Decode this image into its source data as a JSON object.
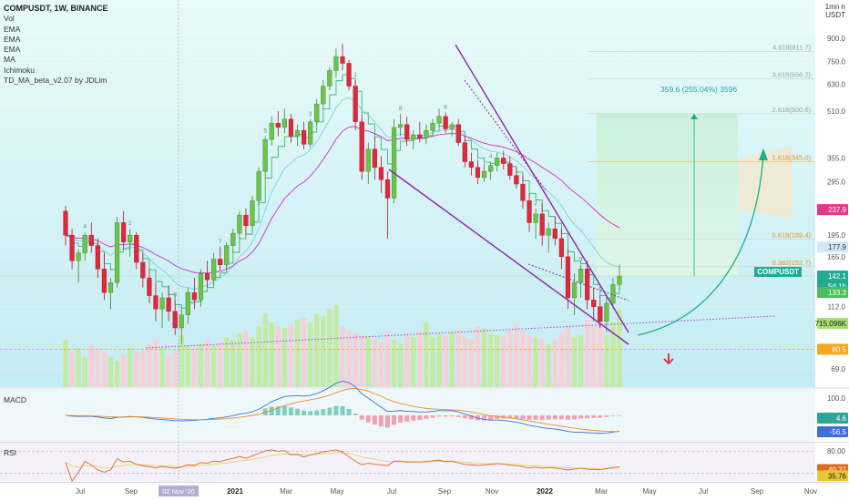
{
  "header": {
    "title": "COMPUSDT, 1W, BINANCE",
    "indicators": [
      "Vol",
      "EMA",
      "EMA",
      "EMA",
      "MA",
      "Ichimoku",
      "TD_MA_beta_v2.07 by JDLim"
    ],
    "currency_unit": "USDT",
    "unit_top": "1mn n"
  },
  "panes": {
    "macd_label": "MACD",
    "rsi_label": "RSI"
  },
  "price_axis": {
    "ticks": [
      "900.0",
      "750.0",
      "630.0",
      "510.0",
      "355.0",
      "295.0",
      "195.0",
      "165.0",
      "112.0",
      "69.0"
    ],
    "tags": {
      "ma_red": "237.9",
      "ema_blue": "177.9",
      "symbol": "COMPUSDT",
      "last": "142.1",
      "countdown": "5d 1h",
      "ema_green": "133.3",
      "volume": "715.096K",
      "support": "80.5"
    }
  },
  "macd_axis": {
    "ticks": [
      "100.0"
    ],
    "tags": [
      "4.6",
      "-56.5"
    ]
  },
  "rsi_axis": {
    "ticks": [
      "80.00"
    ],
    "tags": [
      "40.27",
      "35.76"
    ]
  },
  "time_axis": {
    "labels": [
      "Jul",
      "Sep",
      "2021",
      "Mar",
      "May",
      "Jul",
      "Sep",
      "Nov",
      "2022",
      "Mar",
      "May",
      "Jul",
      "Sep",
      "Nov"
    ],
    "crosshair_label": "02 Nov '20"
  },
  "fib_levels": [
    {
      "label": "4.618(811.7)",
      "value": 811.7
    },
    {
      "label": "3.618(656.2)",
      "value": 656.2
    },
    {
      "label": "2.618(500.6)",
      "value": 500.6
    },
    {
      "label": "1.618(345.0)",
      "value": 345.0
    },
    {
      "label": "0.618(189.4)",
      "value": 189.4
    },
    {
      "label": "0.382(152.7)",
      "value": 152.7
    }
  ],
  "projection": {
    "label": "359.6 (255.04%) 3596",
    "from": 142.1,
    "to": 500.6
  },
  "td_labels": [
    "1",
    "2",
    "3",
    "4",
    "5",
    "6",
    "7",
    "8",
    "9",
    "13"
  ],
  "chart_data": {
    "type": "candlestick",
    "title": "COMPUSDT, 1W, BINANCE",
    "last_price": 142.1,
    "support_level": 80.5,
    "volume_last": "715.096K",
    "candles": [
      {
        "o": 235,
        "h": 245,
        "l": 180,
        "c": 195
      },
      {
        "o": 195,
        "h": 205,
        "l": 150,
        "c": 160
      },
      {
        "o": 160,
        "h": 175,
        "l": 135,
        "c": 170
      },
      {
        "o": 170,
        "h": 200,
        "l": 160,
        "c": 195
      },
      {
        "o": 195,
        "h": 215,
        "l": 170,
        "c": 180
      },
      {
        "o": 180,
        "h": 190,
        "l": 140,
        "c": 150
      },
      {
        "o": 150,
        "h": 170,
        "l": 118,
        "c": 125
      },
      {
        "o": 125,
        "h": 140,
        "l": 110,
        "c": 135
      },
      {
        "o": 135,
        "h": 225,
        "l": 130,
        "c": 215
      },
      {
        "o": 215,
        "h": 235,
        "l": 175,
        "c": 185
      },
      {
        "o": 185,
        "h": 205,
        "l": 165,
        "c": 195
      },
      {
        "o": 195,
        "h": 200,
        "l": 150,
        "c": 158
      },
      {
        "o": 158,
        "h": 170,
        "l": 130,
        "c": 140
      },
      {
        "o": 140,
        "h": 150,
        "l": 115,
        "c": 122
      },
      {
        "o": 122,
        "h": 135,
        "l": 100,
        "c": 110
      },
      {
        "o": 110,
        "h": 125,
        "l": 95,
        "c": 120
      },
      {
        "o": 120,
        "h": 132,
        "l": 100,
        "c": 108
      },
      {
        "o": 108,
        "h": 118,
        "l": 90,
        "c": 95
      },
      {
        "o": 95,
        "h": 112,
        "l": 84,
        "c": 105
      },
      {
        "o": 105,
        "h": 130,
        "l": 98,
        "c": 125
      },
      {
        "o": 125,
        "h": 140,
        "l": 110,
        "c": 118
      },
      {
        "o": 118,
        "h": 150,
        "l": 112,
        "c": 145
      },
      {
        "o": 145,
        "h": 160,
        "l": 130,
        "c": 138
      },
      {
        "o": 138,
        "h": 170,
        "l": 132,
        "c": 162
      },
      {
        "o": 162,
        "h": 178,
        "l": 148,
        "c": 155
      },
      {
        "o": 155,
        "h": 185,
        "l": 150,
        "c": 180
      },
      {
        "o": 180,
        "h": 205,
        "l": 170,
        "c": 198
      },
      {
        "o": 198,
        "h": 235,
        "l": 190,
        "c": 228
      },
      {
        "o": 228,
        "h": 240,
        "l": 195,
        "c": 210
      },
      {
        "o": 210,
        "h": 265,
        "l": 205,
        "c": 255
      },
      {
        "o": 255,
        "h": 330,
        "l": 245,
        "c": 320
      },
      {
        "o": 320,
        "h": 420,
        "l": 305,
        "c": 410
      },
      {
        "o": 410,
        "h": 490,
        "l": 390,
        "c": 465
      },
      {
        "o": 465,
        "h": 510,
        "l": 420,
        "c": 450
      },
      {
        "o": 450,
        "h": 520,
        "l": 430,
        "c": 480
      },
      {
        "o": 480,
        "h": 500,
        "l": 400,
        "c": 420
      },
      {
        "o": 420,
        "h": 460,
        "l": 390,
        "c": 440
      },
      {
        "o": 440,
        "h": 470,
        "l": 380,
        "c": 395
      },
      {
        "o": 395,
        "h": 480,
        "l": 385,
        "c": 470
      },
      {
        "o": 470,
        "h": 560,
        "l": 455,
        "c": 540
      },
      {
        "o": 540,
        "h": 650,
        "l": 520,
        "c": 620
      },
      {
        "o": 620,
        "h": 720,
        "l": 600,
        "c": 700
      },
      {
        "o": 700,
        "h": 830,
        "l": 660,
        "c": 780
      },
      {
        "o": 780,
        "h": 860,
        "l": 700,
        "c": 740
      },
      {
        "o": 740,
        "h": 760,
        "l": 600,
        "c": 620
      },
      {
        "o": 620,
        "h": 650,
        "l": 440,
        "c": 470
      },
      {
        "o": 470,
        "h": 500,
        "l": 300,
        "c": 320
      },
      {
        "o": 320,
        "h": 400,
        "l": 290,
        "c": 380
      },
      {
        "o": 380,
        "h": 420,
        "l": 300,
        "c": 330
      },
      {
        "o": 330,
        "h": 360,
        "l": 270,
        "c": 300
      },
      {
        "o": 300,
        "h": 320,
        "l": 190,
        "c": 260
      },
      {
        "o": 260,
        "h": 480,
        "l": 250,
        "c": 450
      },
      {
        "o": 450,
        "h": 500,
        "l": 420,
        "c": 460
      },
      {
        "o": 460,
        "h": 490,
        "l": 390,
        "c": 410
      },
      {
        "o": 410,
        "h": 440,
        "l": 380,
        "c": 425
      },
      {
        "o": 425,
        "h": 470,
        "l": 400,
        "c": 415
      },
      {
        "o": 415,
        "h": 460,
        "l": 395,
        "c": 440
      },
      {
        "o": 440,
        "h": 480,
        "l": 420,
        "c": 465
      },
      {
        "o": 465,
        "h": 520,
        "l": 450,
        "c": 490
      },
      {
        "o": 490,
        "h": 505,
        "l": 430,
        "c": 445
      },
      {
        "o": 445,
        "h": 470,
        "l": 420,
        "c": 460
      },
      {
        "o": 460,
        "h": 480,
        "l": 390,
        "c": 400
      },
      {
        "o": 400,
        "h": 420,
        "l": 330,
        "c": 345
      },
      {
        "o": 345,
        "h": 370,
        "l": 310,
        "c": 330
      },
      {
        "o": 330,
        "h": 350,
        "l": 290,
        "c": 305
      },
      {
        "o": 305,
        "h": 340,
        "l": 295,
        "c": 320
      },
      {
        "o": 320,
        "h": 345,
        "l": 300,
        "c": 335
      },
      {
        "o": 335,
        "h": 370,
        "l": 320,
        "c": 355
      },
      {
        "o": 355,
        "h": 375,
        "l": 325,
        "c": 340
      },
      {
        "o": 340,
        "h": 360,
        "l": 300,
        "c": 310
      },
      {
        "o": 310,
        "h": 330,
        "l": 280,
        "c": 290
      },
      {
        "o": 290,
        "h": 310,
        "l": 240,
        "c": 255
      },
      {
        "o": 255,
        "h": 270,
        "l": 200,
        "c": 215
      },
      {
        "o": 215,
        "h": 240,
        "l": 190,
        "c": 230
      },
      {
        "o": 230,
        "h": 250,
        "l": 180,
        "c": 195
      },
      {
        "o": 195,
        "h": 215,
        "l": 170,
        "c": 205
      },
      {
        "o": 205,
        "h": 225,
        "l": 180,
        "c": 190
      },
      {
        "o": 190,
        "h": 205,
        "l": 150,
        "c": 165
      },
      {
        "o": 165,
        "h": 175,
        "l": 110,
        "c": 120
      },
      {
        "o": 120,
        "h": 145,
        "l": 105,
        "c": 135
      },
      {
        "o": 135,
        "h": 155,
        "l": 120,
        "c": 150
      },
      {
        "o": 150,
        "h": 160,
        "l": 110,
        "c": 118
      },
      {
        "o": 118,
        "h": 130,
        "l": 100,
        "c": 112
      },
      {
        "o": 112,
        "h": 122,
        "l": 95,
        "c": 100
      },
      {
        "o": 100,
        "h": 120,
        "l": 92,
        "c": 115
      },
      {
        "o": 115,
        "h": 140,
        "l": 110,
        "c": 133
      },
      {
        "o": 133,
        "h": 155,
        "l": 128,
        "c": 142
      }
    ],
    "volume": [
      55,
      40,
      45,
      35,
      50,
      45,
      40,
      35,
      30,
      38,
      45,
      40,
      42,
      50,
      55,
      45,
      38,
      42,
      60,
      48,
      45,
      50,
      55,
      48,
      52,
      58,
      55,
      62,
      65,
      58,
      70,
      85,
      75,
      70,
      68,
      72,
      78,
      80,
      75,
      85,
      82,
      90,
      95,
      70,
      65,
      62,
      60,
      58,
      55,
      52,
      65,
      55,
      50,
      62,
      58,
      65,
      75,
      58,
      62,
      60,
      64,
      66,
      58,
      55,
      70,
      68,
      62,
      60,
      58,
      66,
      72,
      65,
      60,
      58,
      56,
      50,
      55,
      62,
      70,
      58,
      60,
      78,
      70,
      88,
      60,
      75,
      90
    ],
    "volume_up": [
      1,
      0,
      1,
      1,
      0,
      0,
      0,
      1,
      1,
      0,
      1,
      0,
      0,
      0,
      0,
      1,
      0,
      0,
      1,
      1,
      0,
      1,
      0,
      1,
      0,
      1,
      1,
      1,
      0,
      1,
      1,
      1,
      1,
      0,
      1,
      0,
      1,
      0,
      1,
      1,
      1,
      1,
      1,
      0,
      0,
      0,
      0,
      1,
      0,
      0,
      0,
      1,
      1,
      0,
      1,
      0,
      1,
      1,
      1,
      0,
      1,
      0,
      0,
      0,
      0,
      1,
      1,
      1,
      0,
      0,
      0,
      0,
      0,
      1,
      0,
      1,
      0,
      0,
      0,
      1,
      1,
      0,
      0,
      0,
      1,
      1,
      1
    ],
    "macd": {
      "last": 4.6,
      "signal_last": -56.5
    },
    "rsi": {
      "last": 40.27,
      "signal_last": 35.76,
      "upper": 80.0
    }
  }
}
